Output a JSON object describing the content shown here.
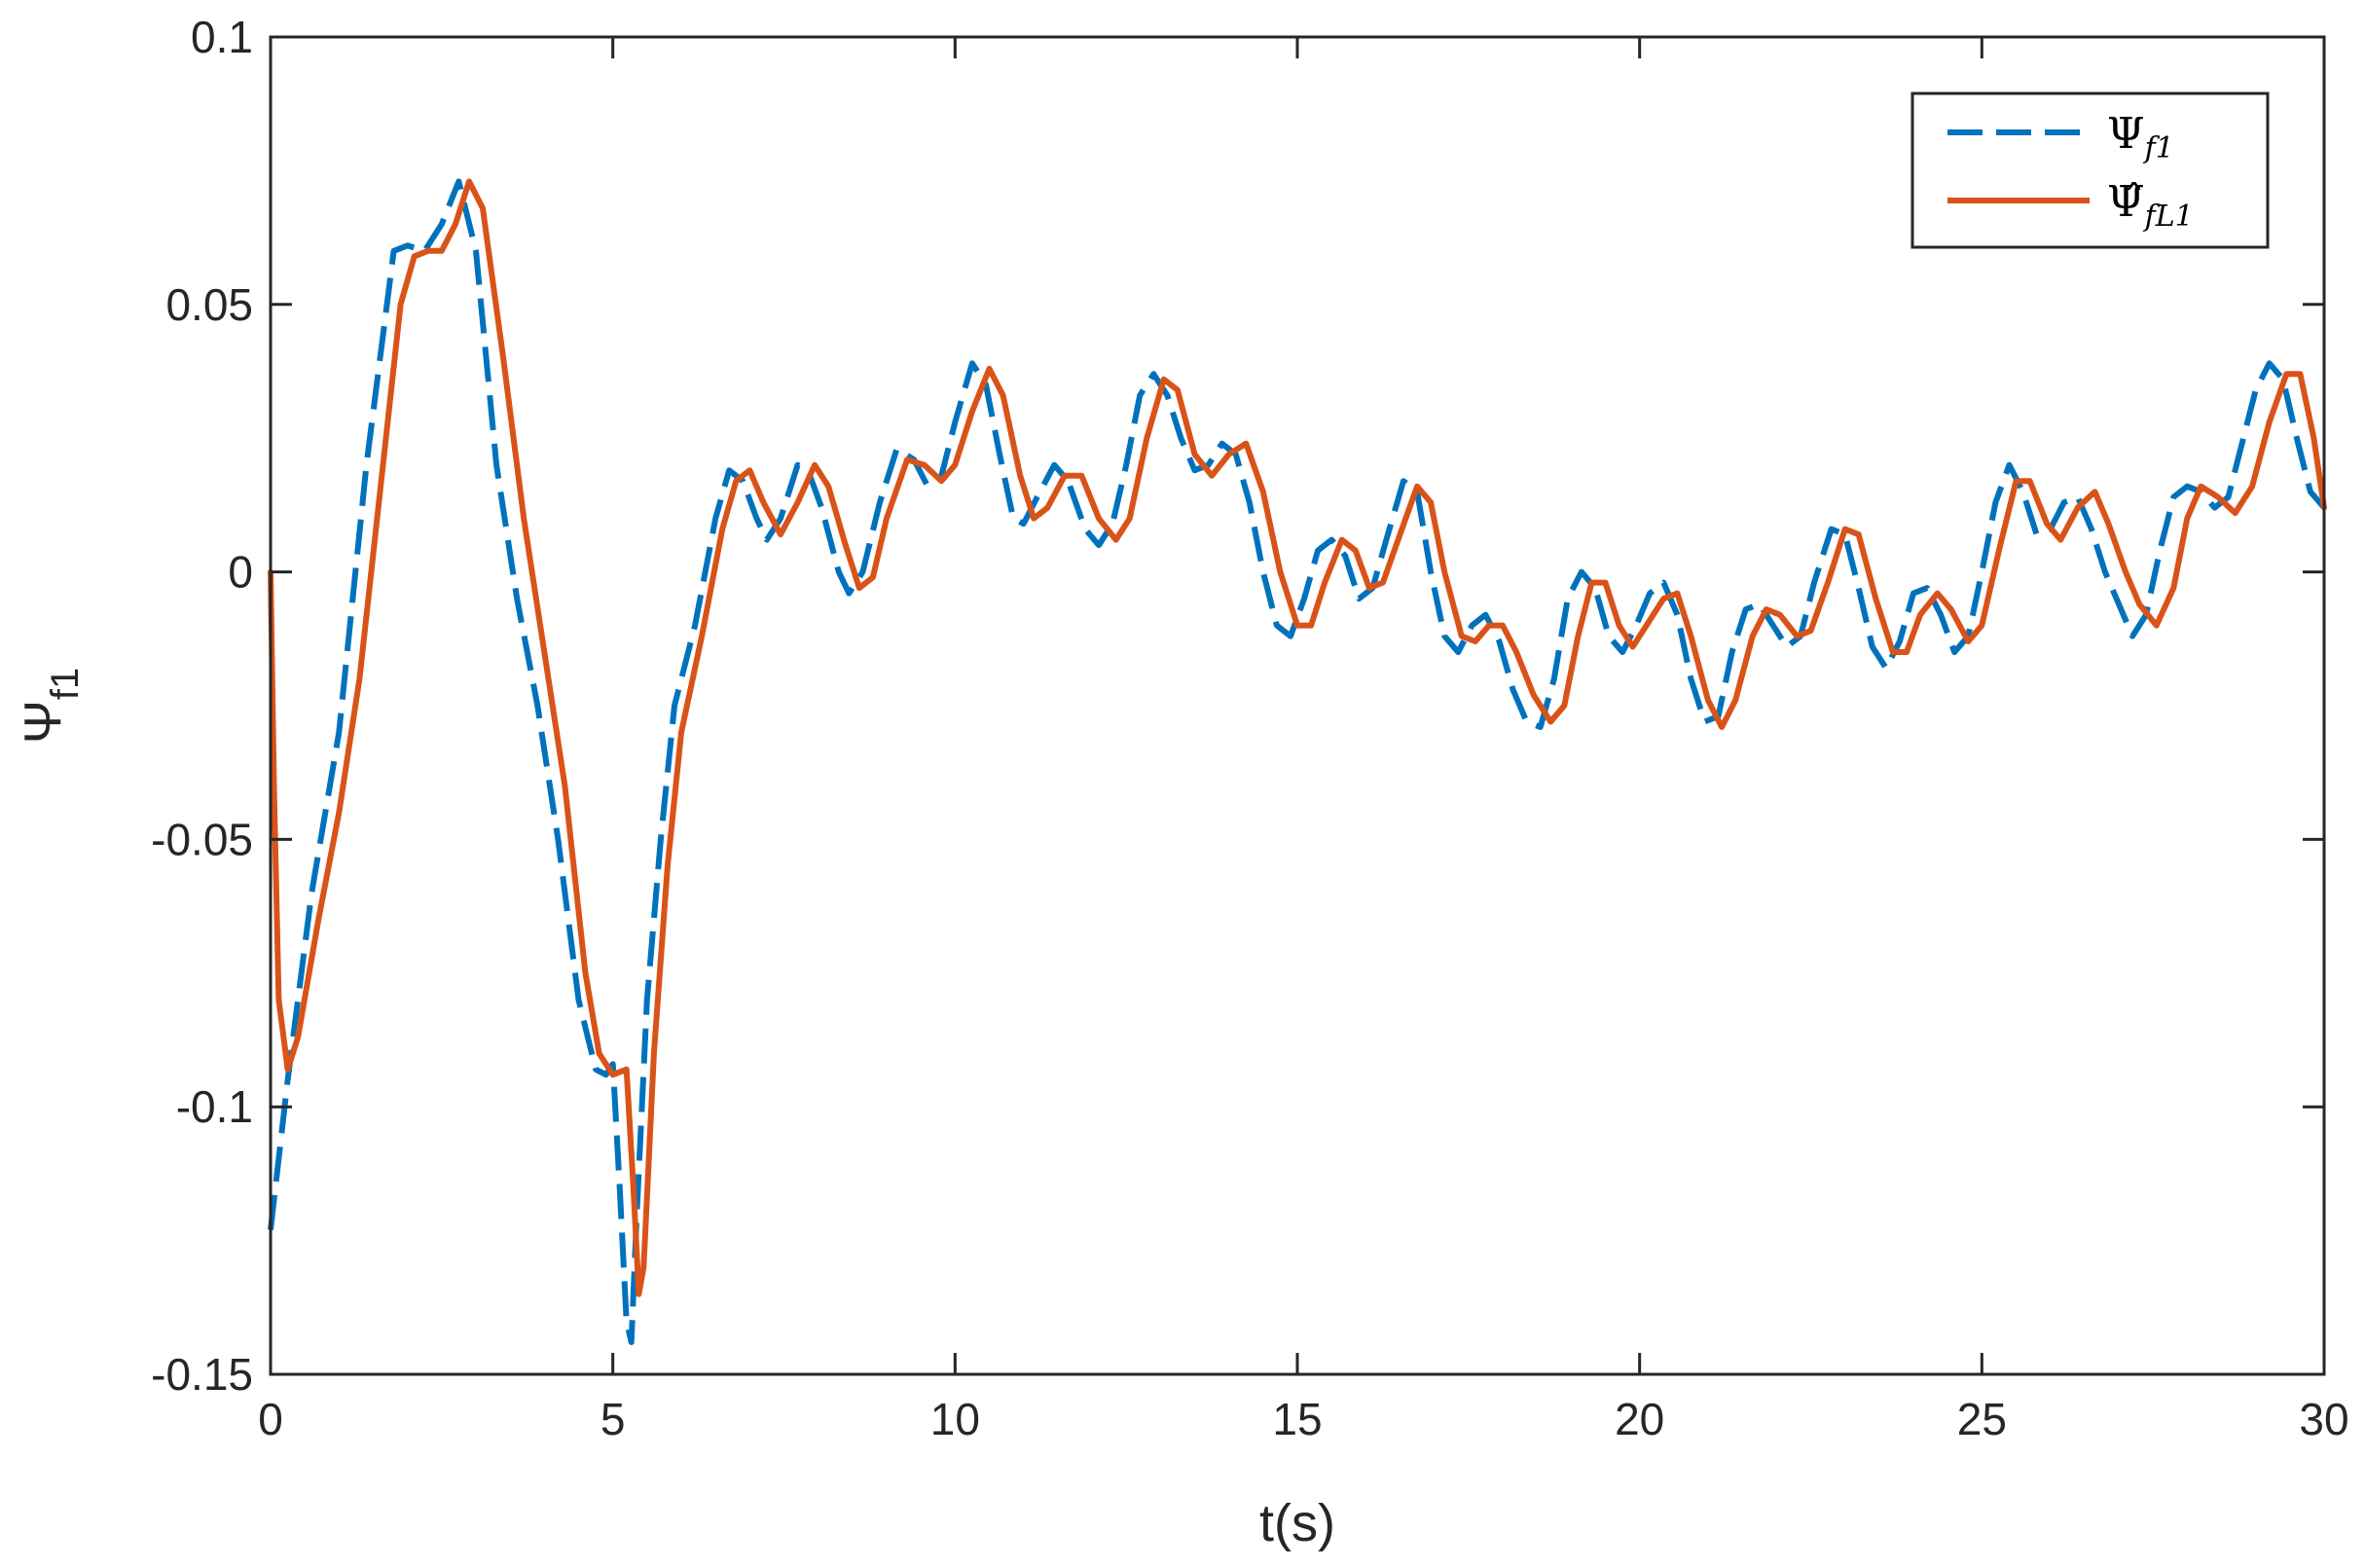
{
  "chart_data": {
    "type": "line",
    "xlabel": "t(s)",
    "ylabel": {
      "symbol": "Ψ",
      "subscript": "f1"
    },
    "xlim": [
      0,
      30
    ],
    "ylim": [
      -0.15,
      0.1
    ],
    "xticks": [
      0,
      5,
      10,
      15,
      20,
      25,
      30
    ],
    "xtick_labels": [
      "0",
      "5",
      "10",
      "15",
      "20",
      "25",
      "30"
    ],
    "yticks": [
      -0.15,
      -0.1,
      -0.05,
      0,
      0.05,
      0.1
    ],
    "ytick_labels": [
      "-0.15",
      "-0.1",
      "-0.05",
      "0",
      "0.05",
      "0.1"
    ],
    "grid": false,
    "legend_position": "top-right",
    "series": [
      {
        "name": "Ψ f1",
        "legend": {
          "symbol": "Ψ",
          "hat": false,
          "subscript": "f1"
        },
        "color": "#0072BD",
        "style": "dashed",
        "points": [
          [
            0,
            -0.123
          ],
          [
            0.25,
            -0.095
          ],
          [
            0.6,
            -0.06
          ],
          [
            1.0,
            -0.03
          ],
          [
            1.4,
            0.02
          ],
          [
            1.8,
            0.06
          ],
          [
            2.0,
            0.061
          ],
          [
            2.25,
            0.06
          ],
          [
            2.5,
            0.065
          ],
          [
            2.75,
            0.073
          ],
          [
            3.0,
            0.06
          ],
          [
            3.3,
            0.02
          ],
          [
            3.6,
            -0.005
          ],
          [
            3.9,
            -0.025
          ],
          [
            4.2,
            -0.05
          ],
          [
            4.5,
            -0.08
          ],
          [
            4.75,
            -0.093
          ],
          [
            4.9,
            -0.094
          ],
          [
            5.0,
            -0.092
          ],
          [
            5.1,
            -0.115
          ],
          [
            5.2,
            -0.14
          ],
          [
            5.27,
            -0.144
          ],
          [
            5.35,
            -0.12
          ],
          [
            5.5,
            -0.08
          ],
          [
            5.7,
            -0.05
          ],
          [
            5.9,
            -0.025
          ],
          [
            6.2,
            -0.01
          ],
          [
            6.5,
            0.01
          ],
          [
            6.7,
            0.019
          ],
          [
            6.9,
            0.017
          ],
          [
            7.1,
            0.01
          ],
          [
            7.25,
            0.006
          ],
          [
            7.45,
            0.01
          ],
          [
            7.7,
            0.02
          ],
          [
            7.85,
            0.019
          ],
          [
            8.05,
            0.012
          ],
          [
            8.3,
            0.0
          ],
          [
            8.45,
            -0.004
          ],
          [
            8.65,
            0.0
          ],
          [
            8.9,
            0.013
          ],
          [
            9.15,
            0.023
          ],
          [
            9.4,
            0.021
          ],
          [
            9.6,
            0.016
          ],
          [
            9.8,
            0.018
          ],
          [
            10.0,
            0.028
          ],
          [
            10.25,
            0.039
          ],
          [
            10.45,
            0.035
          ],
          [
            10.65,
            0.022
          ],
          [
            10.85,
            0.01
          ],
          [
            11.0,
            0.009
          ],
          [
            11.2,
            0.014
          ],
          [
            11.45,
            0.02
          ],
          [
            11.65,
            0.017
          ],
          [
            11.9,
            0.008
          ],
          [
            12.1,
            0.005
          ],
          [
            12.3,
            0.009
          ],
          [
            12.5,
            0.02
          ],
          [
            12.7,
            0.033
          ],
          [
            12.9,
            0.037
          ],
          [
            13.1,
            0.033
          ],
          [
            13.3,
            0.025
          ],
          [
            13.5,
            0.019
          ],
          [
            13.7,
            0.02
          ],
          [
            13.9,
            0.024
          ],
          [
            14.1,
            0.022
          ],
          [
            14.3,
            0.013
          ],
          [
            14.5,
            0.0
          ],
          [
            14.7,
            -0.01
          ],
          [
            14.9,
            -0.012
          ],
          [
            15.1,
            -0.005
          ],
          [
            15.3,
            0.004
          ],
          [
            15.5,
            0.006
          ],
          [
            15.7,
            0.003
          ],
          [
            15.9,
            -0.005
          ],
          [
            16.1,
            -0.003
          ],
          [
            16.3,
            0.006
          ],
          [
            16.55,
            0.017
          ],
          [
            16.75,
            0.015
          ],
          [
            16.95,
            0.0
          ],
          [
            17.15,
            -0.012
          ],
          [
            17.35,
            -0.015
          ],
          [
            17.55,
            -0.01
          ],
          [
            17.75,
            -0.008
          ],
          [
            17.95,
            -0.013
          ],
          [
            18.15,
            -0.022
          ],
          [
            18.35,
            -0.028
          ],
          [
            18.55,
            -0.029
          ],
          [
            18.75,
            -0.02
          ],
          [
            18.95,
            -0.005
          ],
          [
            19.15,
            0.0
          ],
          [
            19.35,
            -0.003
          ],
          [
            19.55,
            -0.012
          ],
          [
            19.75,
            -0.015
          ],
          [
            19.95,
            -0.01
          ],
          [
            20.15,
            -0.004
          ],
          [
            20.35,
            -0.002
          ],
          [
            20.55,
            -0.008
          ],
          [
            20.75,
            -0.02
          ],
          [
            20.95,
            -0.028
          ],
          [
            21.15,
            -0.027
          ],
          [
            21.35,
            -0.015
          ],
          [
            21.55,
            -0.007
          ],
          [
            21.75,
            -0.006
          ],
          [
            21.95,
            -0.01
          ],
          [
            22.15,
            -0.014
          ],
          [
            22.35,
            -0.012
          ],
          [
            22.55,
            -0.002
          ],
          [
            22.8,
            0.008
          ],
          [
            23.0,
            0.007
          ],
          [
            23.2,
            -0.003
          ],
          [
            23.4,
            -0.014
          ],
          [
            23.6,
            -0.018
          ],
          [
            23.8,
            -0.013
          ],
          [
            24.0,
            -0.004
          ],
          [
            24.2,
            -0.003
          ],
          [
            24.4,
            -0.008
          ],
          [
            24.6,
            -0.015
          ],
          [
            24.8,
            -0.012
          ],
          [
            25.0,
            0.0
          ],
          [
            25.2,
            0.013
          ],
          [
            25.4,
            0.02
          ],
          [
            25.6,
            0.015
          ],
          [
            25.8,
            0.007
          ],
          [
            26.0,
            0.008
          ],
          [
            26.2,
            0.013
          ],
          [
            26.4,
            0.014
          ],
          [
            26.6,
            0.008
          ],
          [
            26.8,
            0.0
          ],
          [
            27.0,
            -0.006
          ],
          [
            27.2,
            -0.012
          ],
          [
            27.4,
            -0.008
          ],
          [
            27.6,
            0.004
          ],
          [
            27.8,
            0.014
          ],
          [
            28.0,
            0.016
          ],
          [
            28.2,
            0.015
          ],
          [
            28.4,
            0.012
          ],
          [
            28.6,
            0.014
          ],
          [
            28.8,
            0.024
          ],
          [
            29.0,
            0.034
          ],
          [
            29.2,
            0.039
          ],
          [
            29.4,
            0.036
          ],
          [
            29.6,
            0.025
          ],
          [
            29.8,
            0.015
          ],
          [
            30.0,
            0.012
          ]
        ]
      },
      {
        "name": "Ψ̂ fL1",
        "legend": {
          "symbol": "Ψ",
          "hat": true,
          "subscript": "fL1"
        },
        "color": "#D95319",
        "style": "solid",
        "points": [
          [
            0,
            0.0
          ],
          [
            0.05,
            -0.04
          ],
          [
            0.12,
            -0.08
          ],
          [
            0.25,
            -0.093
          ],
          [
            0.4,
            -0.087
          ],
          [
            0.7,
            -0.065
          ],
          [
            1.0,
            -0.045
          ],
          [
            1.3,
            -0.02
          ],
          [
            1.6,
            0.015
          ],
          [
            1.9,
            0.05
          ],
          [
            2.1,
            0.059
          ],
          [
            2.3,
            0.06
          ],
          [
            2.5,
            0.06
          ],
          [
            2.7,
            0.065
          ],
          [
            2.9,
            0.073
          ],
          [
            3.1,
            0.068
          ],
          [
            3.4,
            0.04
          ],
          [
            3.7,
            0.01
          ],
          [
            4.0,
            -0.015
          ],
          [
            4.3,
            -0.04
          ],
          [
            4.6,
            -0.075
          ],
          [
            4.8,
            -0.09
          ],
          [
            5.0,
            -0.094
          ],
          [
            5.2,
            -0.093
          ],
          [
            5.3,
            -0.115
          ],
          [
            5.38,
            -0.135
          ],
          [
            5.45,
            -0.13
          ],
          [
            5.6,
            -0.09
          ],
          [
            5.8,
            -0.055
          ],
          [
            6.0,
            -0.03
          ],
          [
            6.3,
            -0.012
          ],
          [
            6.6,
            0.008
          ],
          [
            6.8,
            0.017
          ],
          [
            7.0,
            0.019
          ],
          [
            7.2,
            0.013
          ],
          [
            7.45,
            0.007
          ],
          [
            7.7,
            0.013
          ],
          [
            7.95,
            0.02
          ],
          [
            8.15,
            0.016
          ],
          [
            8.4,
            0.005
          ],
          [
            8.6,
            -0.003
          ],
          [
            8.8,
            -0.001
          ],
          [
            9.0,
            0.01
          ],
          [
            9.3,
            0.021
          ],
          [
            9.55,
            0.02
          ],
          [
            9.8,
            0.017
          ],
          [
            10.0,
            0.02
          ],
          [
            10.25,
            0.03
          ],
          [
            10.5,
            0.038
          ],
          [
            10.7,
            0.033
          ],
          [
            10.95,
            0.018
          ],
          [
            11.15,
            0.01
          ],
          [
            11.35,
            0.012
          ],
          [
            11.6,
            0.018
          ],
          [
            11.85,
            0.018
          ],
          [
            12.1,
            0.01
          ],
          [
            12.35,
            0.006
          ],
          [
            12.55,
            0.01
          ],
          [
            12.8,
            0.025
          ],
          [
            13.05,
            0.036
          ],
          [
            13.25,
            0.034
          ],
          [
            13.5,
            0.022
          ],
          [
            13.75,
            0.018
          ],
          [
            14.0,
            0.022
          ],
          [
            14.25,
            0.024
          ],
          [
            14.5,
            0.015
          ],
          [
            14.75,
            0.0
          ],
          [
            15.0,
            -0.01
          ],
          [
            15.2,
            -0.01
          ],
          [
            15.4,
            -0.002
          ],
          [
            15.65,
            0.006
          ],
          [
            15.85,
            0.004
          ],
          [
            16.05,
            -0.003
          ],
          [
            16.25,
            -0.002
          ],
          [
            16.5,
            0.007
          ],
          [
            16.75,
            0.016
          ],
          [
            16.95,
            0.013
          ],
          [
            17.15,
            0.0
          ],
          [
            17.4,
            -0.012
          ],
          [
            17.6,
            -0.013
          ],
          [
            17.8,
            -0.01
          ],
          [
            18.0,
            -0.01
          ],
          [
            18.2,
            -0.015
          ],
          [
            18.45,
            -0.023
          ],
          [
            18.7,
            -0.028
          ],
          [
            18.9,
            -0.025
          ],
          [
            19.1,
            -0.012
          ],
          [
            19.3,
            -0.002
          ],
          [
            19.5,
            -0.002
          ],
          [
            19.7,
            -0.01
          ],
          [
            19.9,
            -0.014
          ],
          [
            20.1,
            -0.01
          ],
          [
            20.35,
            -0.005
          ],
          [
            20.55,
            -0.004
          ],
          [
            20.75,
            -0.012
          ],
          [
            21.0,
            -0.024
          ],
          [
            21.2,
            -0.029
          ],
          [
            21.4,
            -0.024
          ],
          [
            21.65,
            -0.012
          ],
          [
            21.85,
            -0.007
          ],
          [
            22.05,
            -0.008
          ],
          [
            22.3,
            -0.012
          ],
          [
            22.5,
            -0.011
          ],
          [
            22.75,
            -0.002
          ],
          [
            23.0,
            0.008
          ],
          [
            23.2,
            0.007
          ],
          [
            23.45,
            -0.005
          ],
          [
            23.7,
            -0.015
          ],
          [
            23.9,
            -0.015
          ],
          [
            24.1,
            -0.008
          ],
          [
            24.35,
            -0.004
          ],
          [
            24.55,
            -0.007
          ],
          [
            24.8,
            -0.013
          ],
          [
            25.0,
            -0.01
          ],
          [
            25.25,
            0.004
          ],
          [
            25.5,
            0.017
          ],
          [
            25.7,
            0.017
          ],
          [
            25.95,
            0.009
          ],
          [
            26.15,
            0.006
          ],
          [
            26.4,
            0.012
          ],
          [
            26.65,
            0.015
          ],
          [
            26.85,
            0.009
          ],
          [
            27.1,
            0.0
          ],
          [
            27.3,
            -0.006
          ],
          [
            27.55,
            -0.01
          ],
          [
            27.8,
            -0.003
          ],
          [
            28.0,
            0.01
          ],
          [
            28.2,
            0.016
          ],
          [
            28.45,
            0.014
          ],
          [
            28.7,
            0.011
          ],
          [
            28.95,
            0.016
          ],
          [
            29.2,
            0.028
          ],
          [
            29.45,
            0.037
          ],
          [
            29.65,
            0.037
          ],
          [
            29.85,
            0.025
          ],
          [
            30.0,
            0.012
          ]
        ]
      }
    ]
  }
}
